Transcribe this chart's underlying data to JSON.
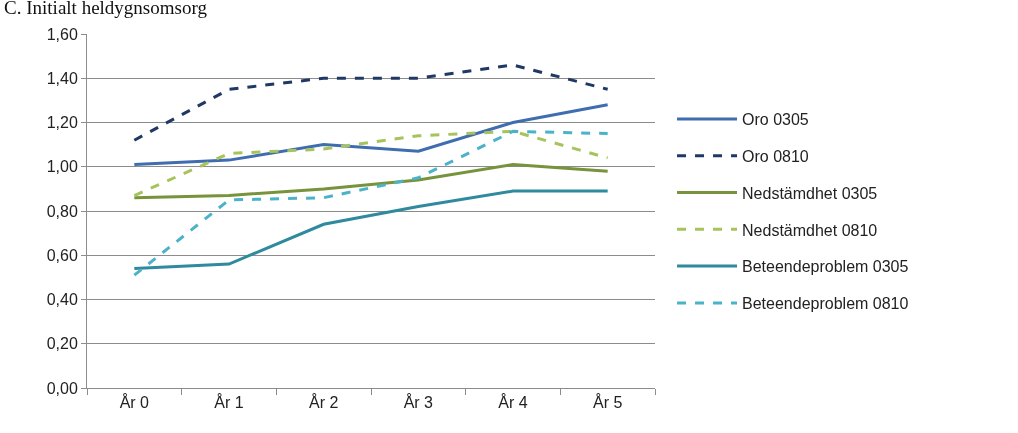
{
  "chart_data": {
    "type": "line",
    "title": "C. Initialt heldygnsomsorg",
    "categories": [
      "År 0",
      "År 1",
      "År 2",
      "År 3",
      "År 4",
      "År 5"
    ],
    "series": [
      {
        "name": "Oro 0305",
        "color": "#3f6db0",
        "line_style": "solid",
        "values": [
          1.01,
          1.03,
          1.1,
          1.07,
          1.2,
          1.28
        ]
      },
      {
        "name": "Oro 0810",
        "color": "#1f3864",
        "line_style": "dashed",
        "values": [
          1.12,
          1.35,
          1.4,
          1.4,
          1.46,
          1.35
        ]
      },
      {
        "name": "Nedstämdhet 0305",
        "color": "#77933c",
        "line_style": "solid",
        "values": [
          0.86,
          0.87,
          0.9,
          0.94,
          1.01,
          0.98
        ]
      },
      {
        "name": "Nedstämdhet 0810",
        "color": "#a6c35c",
        "line_style": "dashed",
        "values": [
          0.87,
          1.06,
          1.08,
          1.14,
          1.16,
          1.04
        ]
      },
      {
        "name": "Beteendeproblem 0305",
        "color": "#2f8a9e",
        "line_style": "solid",
        "values": [
          0.54,
          0.56,
          0.74,
          0.82,
          0.89,
          0.89
        ]
      },
      {
        "name": "Beteendeproblem 0810",
        "color": "#4bb3c9",
        "line_style": "dashed",
        "values": [
          0.51,
          0.85,
          0.86,
          0.95,
          1.16,
          1.15
        ]
      }
    ],
    "ylim": [
      0,
      1.6
    ],
    "yticks": [
      {
        "value": 0,
        "label": "0,00"
      },
      {
        "value": 0.2,
        "label": "0,20"
      },
      {
        "value": 0.4,
        "label": "0,40"
      },
      {
        "value": 0.6,
        "label": "0,60"
      },
      {
        "value": 0.8,
        "label": "0,80"
      },
      {
        "value": 1.0,
        "label": "1,00"
      },
      {
        "value": 1.2,
        "label": "1,20"
      },
      {
        "value": 1.4,
        "label": "1,40"
      },
      {
        "value": 1.6,
        "label": "1,60"
      }
    ],
    "grid": "y",
    "legend": "right"
  }
}
